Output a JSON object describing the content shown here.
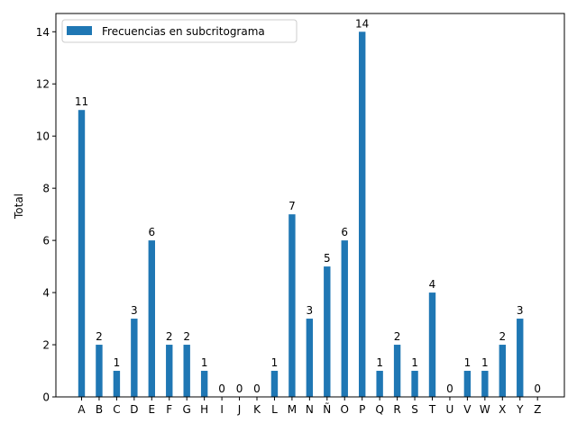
{
  "chart_data": {
    "type": "bar",
    "categories": [
      "A",
      "B",
      "C",
      "D",
      "E",
      "F",
      "G",
      "H",
      "I",
      "J",
      "K",
      "L",
      "M",
      "N",
      "Ñ",
      "O",
      "P",
      "Q",
      "R",
      "S",
      "T",
      "U",
      "V",
      "W",
      "X",
      "Y",
      "Z"
    ],
    "series": [
      {
        "name": "Frecuencias en subcritograma",
        "values": [
          11,
          2,
          1,
          3,
          6,
          2,
          2,
          1,
          0,
          0,
          0,
          1,
          7,
          3,
          5,
          6,
          14,
          1,
          2,
          1,
          4,
          0,
          1,
          1,
          2,
          3,
          0
        ],
        "color": "#1f77b4"
      }
    ],
    "xlabel": "",
    "ylabel": "Total",
    "ylim": [
      0,
      14.7
    ],
    "yticks": [
      0,
      2,
      4,
      6,
      8,
      10,
      12,
      14
    ],
    "legend": "top-left",
    "grid": false,
    "data_labels": true
  }
}
